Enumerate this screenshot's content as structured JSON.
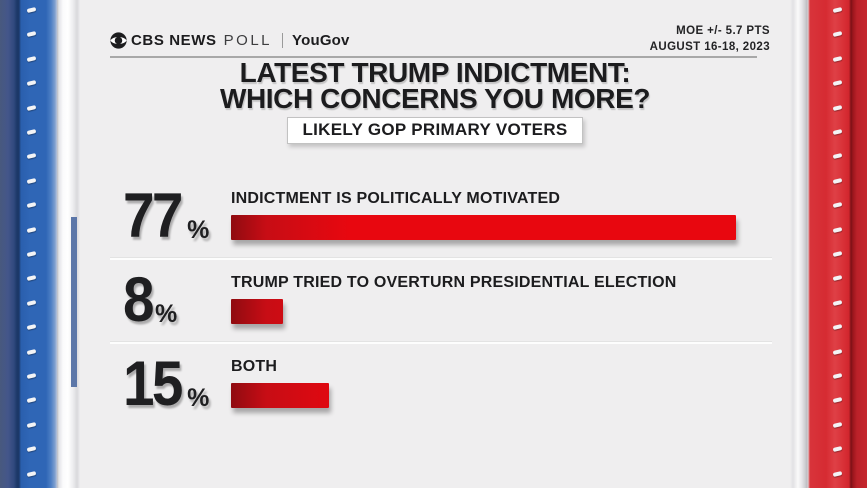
{
  "header": {
    "brand_cbs": "CBS NEWS",
    "brand_poll": "POLL",
    "brand_yougov": "YouGov",
    "moe_line1": "MOE +/- 5.7 PTS",
    "moe_line2": "AUGUST 16-18, 2023"
  },
  "title_line1": "LATEST TRUMP INDICTMENT:",
  "title_line2": "WHICH CONCERNS YOU MORE?",
  "subtitle": "LIKELY GOP PRIMARY VOTERS",
  "chart_data": {
    "type": "bar",
    "orientation": "horizontal",
    "categories": [
      "INDICTMENT IS POLITICALLY MOTIVATED",
      "TRUMP TRIED TO OVERTURN PRESIDENTIAL ELECTION",
      "BOTH"
    ],
    "values": [
      77,
      8,
      15
    ],
    "unit": "%",
    "title": "LATEST TRUMP INDICTMENT: WHICH CONCERNS YOU MORE?",
    "subtitle": "LIKELY GOP PRIMARY VOTERS",
    "xlim": [
      0,
      100
    ],
    "bar_color": "#e10812",
    "legend": "none",
    "grid": false
  },
  "colors": {
    "bar_red": "#e10812",
    "panel_blue": "#2f66b6",
    "panel_red": "#d62b32",
    "card_bg": "#efeeef",
    "text": "#1c1c1e"
  }
}
